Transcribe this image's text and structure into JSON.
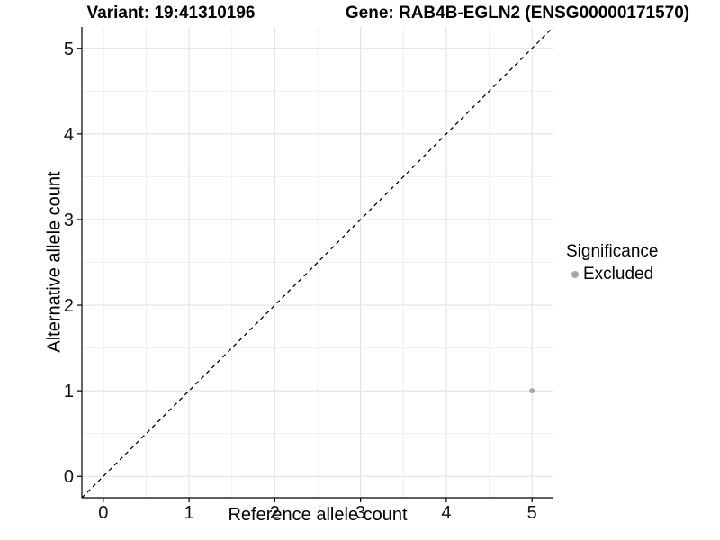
{
  "header": {
    "variant_title": "Variant: 19:41310196",
    "gene_title": "Gene: RAB4B-EGLN2 (ENSG00000171570)"
  },
  "legend": {
    "title": "Significance",
    "items": [
      {
        "label": "Excluded",
        "color": "#a8a8a8"
      }
    ]
  },
  "chart_data": {
    "type": "scatter",
    "title": "",
    "xlabel": "Reference allele count",
    "ylabel": "Alternative allele count",
    "xlim": [
      -0.25,
      5.25
    ],
    "ylim": [
      -0.25,
      5.25
    ],
    "xticks": [
      0,
      1,
      2,
      3,
      4,
      5
    ],
    "yticks": [
      0,
      1,
      2,
      3,
      4,
      5
    ],
    "minor_xticks": [
      0.5,
      1.5,
      2.5,
      3.5,
      4.5
    ],
    "minor_yticks": [
      0.5,
      1.5,
      2.5,
      3.5,
      4.5
    ],
    "grid": "major+minor",
    "legend_position": "right",
    "series": [
      {
        "name": "Excluded",
        "color": "#a8a8a8",
        "points": [
          {
            "x": 5,
            "y": 1
          }
        ]
      }
    ],
    "identity_line": {
      "style": "dashed",
      "color": "#000000",
      "from": [
        -0.25,
        -0.25
      ],
      "to": [
        5.25,
        5.25
      ]
    },
    "colors": {
      "major_grid": "#e4e4e4",
      "minor_grid": "#f1f1f1",
      "axis": "#000000",
      "tick_label": "#111111",
      "background": "#ffffff"
    }
  }
}
